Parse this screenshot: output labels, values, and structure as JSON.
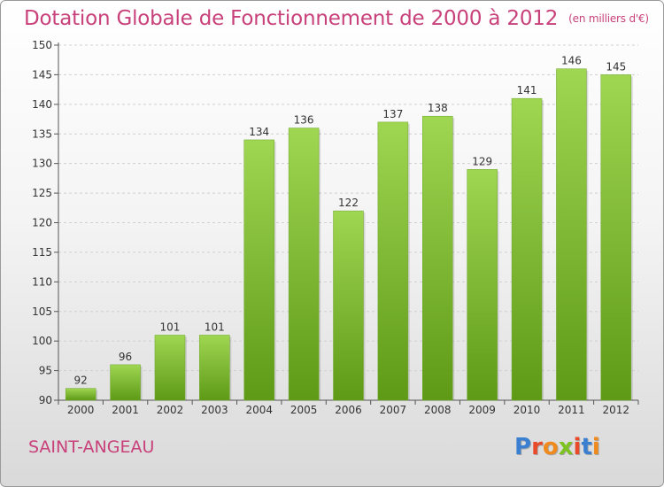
{
  "header": {
    "title": "Dotation Globale de Fonctionnement de 2000 à 2012",
    "unit": "(en milliers d'€)"
  },
  "commune": "SAINT-ANGEAU",
  "logo": {
    "letters": [
      "P",
      "r",
      "o",
      "x",
      "i",
      "t",
      "i"
    ],
    "colors": [
      "#3b7fd0",
      "#e94b2a",
      "#f08a1c",
      "#7cc221",
      "#e94b2a",
      "#3b7fd0",
      "#f08a1c"
    ]
  },
  "chart_data": {
    "type": "bar",
    "categories": [
      "2000",
      "2001",
      "2002",
      "2003",
      "2004",
      "2005",
      "2006",
      "2007",
      "2008",
      "2009",
      "2010",
      "2011",
      "2012"
    ],
    "values": [
      92,
      96,
      101,
      101,
      134,
      136,
      122,
      137,
      138,
      129,
      141,
      146,
      145
    ],
    "ylim": [
      90,
      150
    ],
    "yticks": [
      90,
      95,
      100,
      105,
      110,
      115,
      120,
      125,
      130,
      135,
      140,
      145,
      150
    ],
    "grid": true,
    "bar_color": "#8cc63f",
    "value_labels": true
  }
}
